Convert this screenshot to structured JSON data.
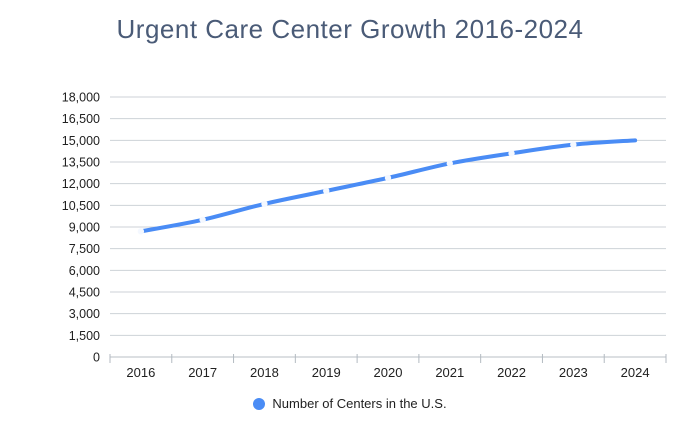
{
  "title": "Urgent Care Center Growth 2016-2024",
  "legend": {
    "label": "Number of Centers in the U.S."
  },
  "chart_data": {
    "type": "line",
    "title": "Urgent Care Center Growth 2016-2024",
    "categories": [
      "2016",
      "2017",
      "2018",
      "2019",
      "2020",
      "2021",
      "2022",
      "2023",
      "2024"
    ],
    "series": [
      {
        "name": "Number of Centers in the U.S.",
        "values": [
          8700,
          9500,
          10600,
          11500,
          12400,
          13400,
          14100,
          14700,
          15000
        ],
        "color": "#4a8cf5",
        "marker": "white-dot",
        "smoothed": true
      }
    ],
    "xlabel": "",
    "ylabel": "",
    "ylim": [
      0,
      18000
    ],
    "y_tick_step": 1500,
    "y_ticks": [
      0,
      1500,
      3000,
      4500,
      6000,
      7500,
      9000,
      10500,
      12000,
      13500,
      15000,
      16500,
      18000
    ],
    "y_tick_labels": [
      "0",
      "1,500",
      "3,000",
      "4,500",
      "6,000",
      "7,500",
      "9,000",
      "10,500",
      "12,000",
      "13,500",
      "15,000",
      "16,500",
      "18,000"
    ],
    "grid": true,
    "legend_position": "bottom"
  },
  "colors": {
    "background": "#ffffff",
    "title": "#4a5b77",
    "axis_label": "#212121",
    "gridline": "#cdd2d7",
    "baseline": "#b8bfc6",
    "tick": "#b3bac1",
    "series_line": "#4a8cf5",
    "marker_fill": "#f4f8ff"
  }
}
